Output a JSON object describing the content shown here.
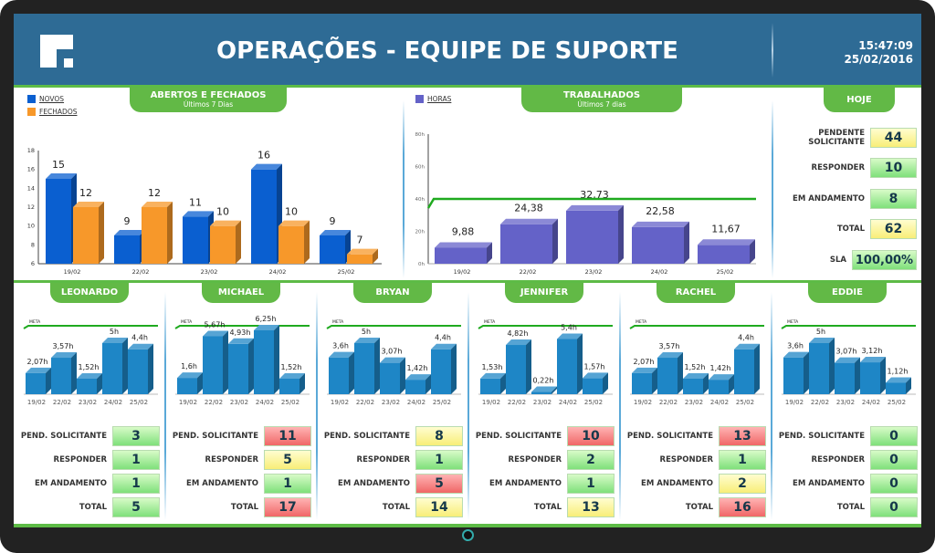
{
  "header": {
    "title": "OPERAÇÕES - EQUIPE DE SUPORTE",
    "time": "15:47:09",
    "date": "25/02/2016"
  },
  "colors": {
    "header": "#2e6b95",
    "accent_green": "#62b946",
    "novos": "#0a5fd0",
    "fechados": "#f7982a",
    "horas": "#6462c8",
    "person_bar": "#1e86c6"
  },
  "panel_abertos": {
    "title": "ABERTOS E FECHADOS",
    "subtitle": "Últimos 7 Dias",
    "legend": [
      "NOVOS",
      "FECHADOS"
    ]
  },
  "panel_trabalhados": {
    "title": "TRABALHADOS",
    "subtitle": "Últimos 7 dias",
    "legend": [
      "HORAS"
    ]
  },
  "panel_hoje": {
    "title": "HOJE",
    "rows": [
      {
        "label": "PENDENTE SOLICITANTE",
        "value": "44",
        "status": "yellow"
      },
      {
        "label": "RESPONDER",
        "value": "10",
        "status": "green"
      },
      {
        "label": "EM ANDAMENTO",
        "value": "8",
        "status": "green"
      },
      {
        "label": "TOTAL",
        "value": "62",
        "status": "yellow"
      },
      {
        "label": "SLA",
        "value": "100,00%",
        "status": "green"
      }
    ]
  },
  "chart_data": [
    {
      "type": "bar",
      "categories": [
        "19/02",
        "22/02",
        "23/02",
        "24/02",
        "25/02"
      ],
      "series": [
        {
          "name": "NOVOS",
          "values": [
            15,
            9,
            11,
            16,
            9
          ]
        },
        {
          "name": "FECHADOS",
          "values": [
            12,
            12,
            10,
            10,
            7
          ]
        }
      ],
      "ylim": [
        6,
        18
      ],
      "yticks": [
        "6",
        "8",
        "10",
        "12",
        "14",
        "16",
        "18"
      ]
    },
    {
      "type": "bar",
      "categories": [
        "19/02",
        "22/02",
        "23/02",
        "24/02",
        "25/02"
      ],
      "series": [
        {
          "name": "HORAS",
          "values": [
            9.88,
            24.38,
            32.73,
            22.58,
            11.67
          ],
          "labels": [
            "9,88",
            "24,38",
            "32,73",
            "22,58",
            "11,67"
          ]
        }
      ],
      "ylim": [
        0,
        80
      ],
      "yticks": [
        "0h",
        "20h",
        "40h",
        "60h",
        "80h"
      ],
      "target_line": 40
    }
  ],
  "people_chart": {
    "categories": [
      "19/02",
      "22/02",
      "23/02",
      "24/02",
      "25/02"
    ],
    "meta_label": "META"
  },
  "stat_labels": [
    "PEND. SOLICITANTE",
    "RESPONDER",
    "EM ANDAMENTO",
    "TOTAL"
  ],
  "people": [
    {
      "name": "LEONARDO",
      "hours": [
        2.07,
        3.57,
        1.52,
        5,
        4.4
      ],
      "hour_labels": [
        "2,07h",
        "3,57h",
        "1,52h",
        "5h",
        "4,4h"
      ],
      "stats": [
        {
          "value": "3",
          "status": "green"
        },
        {
          "value": "1",
          "status": "green"
        },
        {
          "value": "1",
          "status": "green"
        },
        {
          "value": "5",
          "status": "green"
        }
      ]
    },
    {
      "name": "MICHAEL",
      "hours": [
        1.6,
        5.67,
        4.93,
        6.25,
        1.52
      ],
      "hour_labels": [
        "1,6h",
        "5,67h",
        "4,93h",
        "6,25h",
        "1,52h"
      ],
      "stats": [
        {
          "value": "11",
          "status": "red"
        },
        {
          "value": "5",
          "status": "yellow"
        },
        {
          "value": "1",
          "status": "green"
        },
        {
          "value": "17",
          "status": "red"
        }
      ]
    },
    {
      "name": "BRYAN",
      "hours": [
        3.6,
        5,
        3.07,
        1.42,
        4.4
      ],
      "hour_labels": [
        "3,6h",
        "5h",
        "3,07h",
        "1,42h",
        "4,4h"
      ],
      "stats": [
        {
          "value": "8",
          "status": "yellow"
        },
        {
          "value": "1",
          "status": "green"
        },
        {
          "value": "5",
          "status": "red"
        },
        {
          "value": "14",
          "status": "yellow"
        }
      ]
    },
    {
      "name": "JENNIFER",
      "hours": [
        1.53,
        4.82,
        0.22,
        5.4,
        1.57
      ],
      "hour_labels": [
        "1,53h",
        "4,82h",
        "0,22h",
        "5,4h",
        "1,57h"
      ],
      "stats": [
        {
          "value": "10",
          "status": "red"
        },
        {
          "value": "2",
          "status": "green"
        },
        {
          "value": "1",
          "status": "green"
        },
        {
          "value": "13",
          "status": "yellow"
        }
      ]
    },
    {
      "name": "RACHEL",
      "hours": [
        2.07,
        3.57,
        1.52,
        1.42,
        4.4
      ],
      "hour_labels": [
        "2,07h",
        "3,57h",
        "1,52h",
        "1,42h",
        "4,4h"
      ],
      "stats": [
        {
          "value": "13",
          "status": "red"
        },
        {
          "value": "1",
          "status": "green"
        },
        {
          "value": "2",
          "status": "yellow"
        },
        {
          "value": "16",
          "status": "red"
        }
      ]
    },
    {
      "name": "EDDIE",
      "hours": [
        3.6,
        5,
        3.07,
        3.12,
        1.12
      ],
      "hour_labels": [
        "3,6h",
        "5h",
        "3,07h",
        "3,12h",
        "1,12h"
      ],
      "stats": [
        {
          "value": "0",
          "status": "green"
        },
        {
          "value": "0",
          "status": "green"
        },
        {
          "value": "0",
          "status": "green"
        },
        {
          "value": "0",
          "status": "green"
        }
      ]
    }
  ]
}
